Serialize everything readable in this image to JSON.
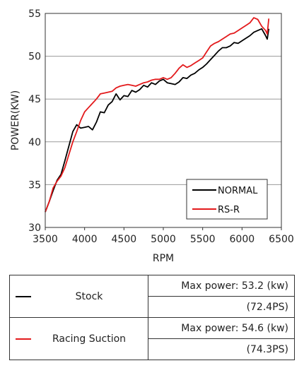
{
  "chart_data": {
    "type": "line",
    "xlabel": "RPM",
    "ylabel": "POWER(KW)",
    "xlim": [
      3500,
      6500
    ],
    "ylim": [
      30,
      55
    ],
    "xticks": [
      3500,
      4000,
      4500,
      5000,
      5500,
      6000,
      6500
    ],
    "yticks": [
      30,
      35,
      40,
      45,
      50,
      55
    ],
    "grid": "horizontal",
    "legend_position": "bottom-right",
    "series": [
      {
        "name": "NORMAL",
        "color": "#000000",
        "x": [
          3500,
          3550,
          3600,
          3650,
          3700,
          3750,
          3800,
          3850,
          3900,
          3950,
          4000,
          4050,
          4100,
          4150,
          4200,
          4250,
          4300,
          4350,
          4400,
          4450,
          4500,
          4550,
          4600,
          4650,
          4700,
          4750,
          4800,
          4850,
          4900,
          4950,
          5000,
          5050,
          5100,
          5150,
          5200,
          5250,
          5300,
          5350,
          5400,
          5450,
          5500,
          5550,
          5600,
          5650,
          5700,
          5750,
          5800,
          5850,
          5900,
          5950,
          6000,
          6050,
          6100,
          6150,
          6200,
          6250,
          6300,
          6320,
          6340
        ],
        "values": [
          31.8,
          33.0,
          34.3,
          35.5,
          36.2,
          37.8,
          39.5,
          41.2,
          42.0,
          41.6,
          41.7,
          41.8,
          41.4,
          42.3,
          43.5,
          43.4,
          44.3,
          44.7,
          45.6,
          44.9,
          45.4,
          45.3,
          46.0,
          45.8,
          46.1,
          46.6,
          46.4,
          46.9,
          46.7,
          47.1,
          47.3,
          46.9,
          46.8,
          46.7,
          47.0,
          47.5,
          47.4,
          47.8,
          48.0,
          48.4,
          48.7,
          49.1,
          49.6,
          50.1,
          50.6,
          51.0,
          51.0,
          51.2,
          51.6,
          51.5,
          51.8,
          52.1,
          52.4,
          52.8,
          53.0,
          53.2,
          52.4,
          52.0,
          53.2
        ]
      },
      {
        "name": "RS-R",
        "color": "#e31a1c",
        "x": [
          3500,
          3550,
          3600,
          3650,
          3700,
          3750,
          3800,
          3850,
          3900,
          3950,
          4000,
          4050,
          4100,
          4150,
          4200,
          4250,
          4300,
          4350,
          4400,
          4450,
          4500,
          4550,
          4600,
          4650,
          4700,
          4750,
          4800,
          4850,
          4900,
          4950,
          5000,
          5050,
          5100,
          5150,
          5200,
          5250,
          5300,
          5350,
          5400,
          5450,
          5500,
          5550,
          5600,
          5650,
          5700,
          5750,
          5800,
          5850,
          5900,
          5950,
          6000,
          6050,
          6100,
          6150,
          6200,
          6250,
          6300,
          6320,
          6340
        ],
        "values": [
          31.8,
          33.0,
          34.6,
          35.4,
          36.0,
          37.0,
          38.5,
          40.0,
          41.2,
          42.5,
          43.5,
          44.0,
          44.5,
          45.0,
          45.6,
          45.7,
          45.8,
          45.9,
          46.3,
          46.5,
          46.6,
          46.7,
          46.6,
          46.5,
          46.7,
          46.9,
          47.0,
          47.2,
          47.3,
          47.3,
          47.5,
          47.3,
          47.5,
          48.0,
          48.6,
          49.0,
          48.7,
          48.9,
          49.2,
          49.5,
          49.8,
          50.5,
          51.2,
          51.5,
          51.7,
          52.0,
          52.3,
          52.6,
          52.7,
          53.0,
          53.3,
          53.6,
          53.9,
          54.5,
          54.3,
          53.5,
          53.0,
          52.6,
          54.4
        ]
      }
    ]
  },
  "summary_table": {
    "rows": [
      {
        "name": "Stock",
        "color": "#000000",
        "max_power": "Max power: 53.2 (kw)",
        "ps": "(72.4PS)"
      },
      {
        "name": "Racing Suction",
        "color": "#e31a1c",
        "max_power": "Max power: 54.6 (kw)",
        "ps": "(74.3PS)"
      }
    ]
  }
}
